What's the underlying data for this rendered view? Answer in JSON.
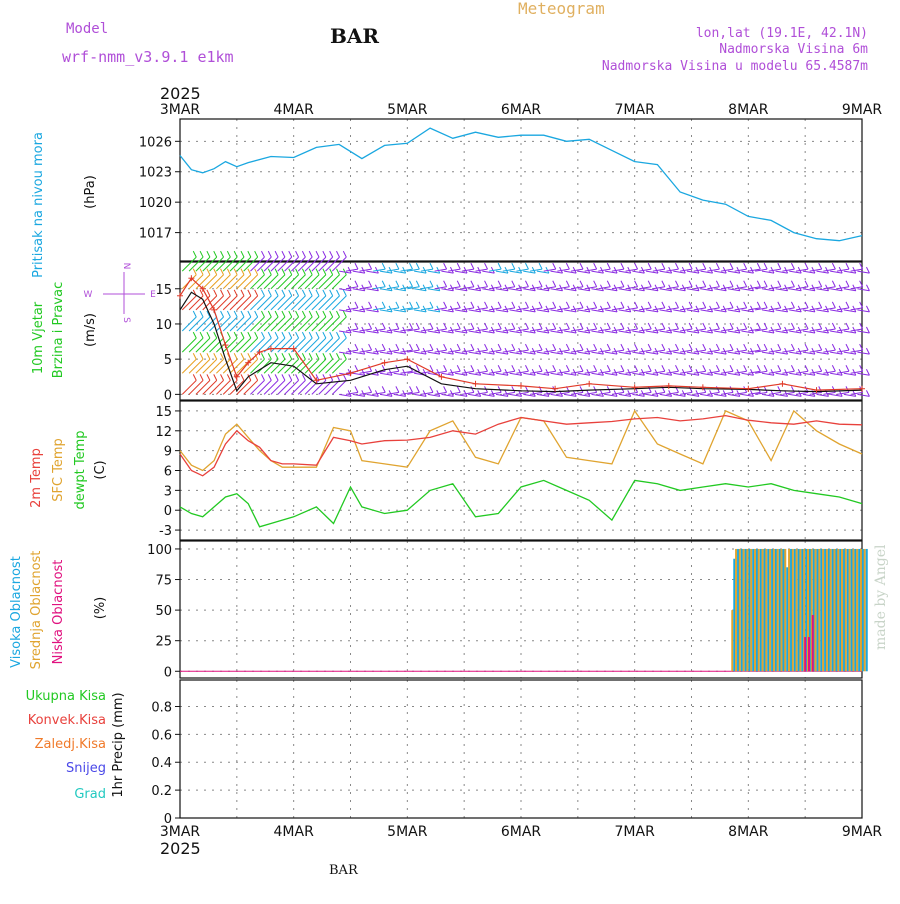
{
  "header": {
    "model_label": "Model",
    "model_name": "wrf-nmm_v3.9.1 e1km",
    "station": "BAR",
    "meteogram": "Meteogram",
    "lonlat": "lon,lat (19.1E, 42.1N)",
    "elevation": "Nadmorska Visina 6m",
    "model_elevation": "Nadmorska Visina u modelu 65.4587m",
    "year": "2025",
    "footer_station": "BAR",
    "credit": "made by Angel"
  },
  "colors": {
    "pressure": "#1aa7e0",
    "temp2m": "#e8413c",
    "sfc": "#e0a430",
    "dewpt": "#22c922",
    "wind_speed": "#111111",
    "gust": "#e03a28",
    "low_cloud": "#e0117f",
    "mid_cloud": "#e0a430",
    "high_cloud": "#1aa7e0",
    "barb_purple": "#8a2be2"
  },
  "chart_data": [
    {
      "type": "line",
      "panel": "pressure",
      "ylabel": [
        "Pritisak na nivou mora",
        "(hPa)"
      ],
      "x_ticks": [
        "3MAR",
        "4MAR",
        "5MAR",
        "6MAR",
        "7MAR",
        "8MAR",
        "9MAR"
      ],
      "yticks": [
        1017,
        1020,
        1023,
        1026
      ],
      "ylim": [
        1014.2,
        1028.2
      ],
      "x": [
        0,
        0.1,
        0.2,
        0.3,
        0.4,
        0.5,
        0.6,
        0.8,
        1.0,
        1.2,
        1.4,
        1.6,
        1.8,
        2.0,
        2.2,
        2.4,
        2.6,
        2.8,
        3.0,
        3.2,
        3.4,
        3.6,
        3.8,
        4.0,
        4.2,
        4.4,
        4.6,
        4.8,
        5.0,
        5.2,
        5.4,
        5.6,
        5.8,
        6.0
      ],
      "series": [
        {
          "name": "",
          "values": [
            1024.6,
            1023.2,
            1022.9,
            1023.3,
            1024.0,
            1023.5,
            1023.9,
            1024.5,
            1024.4,
            1025.4,
            1025.7,
            1024.3,
            1025.6,
            1025.8,
            1027.3,
            1026.3,
            1026.9,
            1026.4,
            1026.6,
            1026.6,
            1026.0,
            1026.2,
            1025.1,
            1024.0,
            1023.7,
            1021.0,
            1020.2,
            1019.8,
            1018.6,
            1018.2,
            1017.0,
            1016.4,
            1016.2,
            1016.7
          ]
        }
      ]
    },
    {
      "type": "line",
      "panel": "wind",
      "ylabel": [
        "10m Vjetar",
        "Brzina i Pravac",
        "(m/s)"
      ],
      "compass": [
        "N",
        "E",
        "S",
        "W"
      ],
      "yticks": [
        0,
        5,
        10,
        15
      ],
      "ylim": [
        -0.8,
        18.8
      ],
      "x": [
        0,
        0.1,
        0.2,
        0.3,
        0.4,
        0.5,
        0.6,
        0.7,
        0.8,
        1.0,
        1.2,
        1.5,
        1.8,
        2.0,
        2.3,
        2.6,
        3.0,
        3.3,
        3.6,
        4.0,
        4.3,
        4.6,
        5.0,
        5.3,
        5.6,
        6.0
      ],
      "series": [
        {
          "name": "",
          "values": [
            12.0,
            14.5,
            13.5,
            10.0,
            5.0,
            0.5,
            2.5,
            3.5,
            4.5,
            4.0,
            1.5,
            2.0,
            3.5,
            4.0,
            1.5,
            0.8,
            0.5,
            0.4,
            0.6,
            0.8,
            1.0,
            0.8,
            0.7,
            0.5,
            0.4,
            0.6
          ]
        },
        {
          "name": "",
          "values": [
            14.0,
            16.5,
            15.0,
            12.0,
            7.0,
            2.5,
            4.5,
            6.0,
            6.5,
            6.5,
            2.0,
            3.0,
            4.5,
            5.0,
            2.5,
            1.5,
            1.2,
            0.8,
            1.5,
            1.0,
            1.2,
            1.0,
            0.8,
            1.5,
            0.6,
            0.8
          ]
        }
      ]
    },
    {
      "type": "line",
      "panel": "temperature",
      "ylabel": [
        "2m Temp",
        "SFC Temp",
        "dewpt Temp",
        "(C)"
      ],
      "yticks": [
        -3,
        0,
        3,
        6,
        9,
        12,
        15
      ],
      "ylim": [
        -4.5,
        16.5
      ],
      "x": [
        0,
        0.1,
        0.2,
        0.3,
        0.4,
        0.5,
        0.6,
        0.7,
        0.8,
        0.9,
        1.0,
        1.2,
        1.35,
        1.5,
        1.6,
        1.8,
        2.0,
        2.2,
        2.4,
        2.6,
        2.8,
        3.0,
        3.2,
        3.4,
        3.6,
        3.8,
        4.0,
        4.2,
        4.4,
        4.6,
        4.8,
        5.0,
        5.2,
        5.4,
        5.6,
        5.8,
        6.0
      ],
      "series": [
        {
          "name": "",
          "values": [
            8.5,
            6.0,
            5.2,
            6.5,
            10.0,
            12.0,
            10.5,
            9.5,
            7.5,
            7.0,
            7.0,
            6.8,
            11.0,
            10.5,
            10.0,
            10.5,
            10.6,
            11.0,
            12.0,
            11.5,
            13.0,
            14.0,
            13.5,
            13.0,
            13.2,
            13.4,
            13.8,
            14.0,
            13.5,
            13.8,
            14.3,
            13.6,
            13.2,
            13.0,
            13.5,
            13.0,
            12.9
          ]
        },
        {
          "name": "",
          "values": [
            9.0,
            6.8,
            6.0,
            7.5,
            11.5,
            13.0,
            11.0,
            9.0,
            7.5,
            6.5,
            6.5,
            6.5,
            12.5,
            12.0,
            7.5,
            7.0,
            6.5,
            12.0,
            13.5,
            8.0,
            7.0,
            14.0,
            13.5,
            8.0,
            7.5,
            7.0,
            15.0,
            10.0,
            8.5,
            7.0,
            15.0,
            13.5,
            7.5,
            15.0,
            12.0,
            10.0,
            8.5
          ]
        },
        {
          "name": "",
          "values": [
            0.5,
            -0.5,
            -1.0,
            0.5,
            2.0,
            2.5,
            1.0,
            -2.5,
            -2.0,
            -1.5,
            -1.0,
            0.5,
            -2.0,
            3.5,
            0.5,
            -0.5,
            0.0,
            3.0,
            4.0,
            -1.0,
            -0.5,
            3.5,
            4.5,
            3.0,
            1.5,
            -1.5,
            4.5,
            4.0,
            3.0,
            3.5,
            4.0,
            3.5,
            4.0,
            3.0,
            2.5,
            2.0,
            1.0
          ]
        }
      ]
    },
    {
      "type": "bar",
      "panel": "cloud",
      "ylabel": [
        "Visoka Oblacnost",
        "Srednja Oblacnost",
        "Niska Oblacnost",
        "(%)"
      ],
      "yticks": [
        0,
        25,
        50,
        75,
        100
      ],
      "ylim": [
        -5.5,
        106.5
      ],
      "x_start": 4.85,
      "x_step": 0.0333,
      "series": [
        {
          "name": "",
          "values": [
            92,
            100,
            100,
            100,
            100,
            100,
            100,
            100,
            100,
            100,
            100,
            100,
            100,
            100,
            85,
            100,
            100,
            100,
            100,
            100,
            100,
            100,
            100,
            100,
            100,
            100,
            100,
            100,
            100,
            100,
            100,
            100,
            100,
            100,
            100,
            100
          ]
        },
        {
          "name": "",
          "values": [
            50,
            100,
            100,
            100,
            100,
            100,
            100,
            100,
            100,
            100,
            100,
            100,
            100,
            100,
            100,
            100,
            100,
            100,
            100,
            100,
            100,
            100,
            100,
            100,
            100,
            100,
            100,
            100,
            100,
            100,
            100,
            100,
            100,
            100,
            100,
            100
          ]
        },
        {
          "name": "",
          "values": [
            0,
            0,
            0,
            0,
            0,
            0,
            0,
            0,
            0,
            0,
            0,
            0,
            0,
            0,
            0,
            0,
            0,
            0,
            0,
            28,
            28,
            46,
            0,
            0,
            0,
            0,
            0,
            0,
            0,
            0,
            0,
            0,
            0,
            0,
            0,
            0
          ]
        }
      ]
    },
    {
      "type": "line",
      "panel": "precip",
      "ylabel": [
        "Ukupna Kisa",
        "Konvek.Kisa",
        "Zaledj.Kisa",
        "Snijeg",
        "Grad",
        "1hr Precip (mm)"
      ],
      "yticks": [
        0,
        0.2,
        0.4,
        0.6,
        0.8
      ],
      "ylim": [
        0,
        0.99
      ],
      "series": [
        {
          "name": "",
          "values": [
            0,
            0
          ]
        }
      ]
    }
  ]
}
